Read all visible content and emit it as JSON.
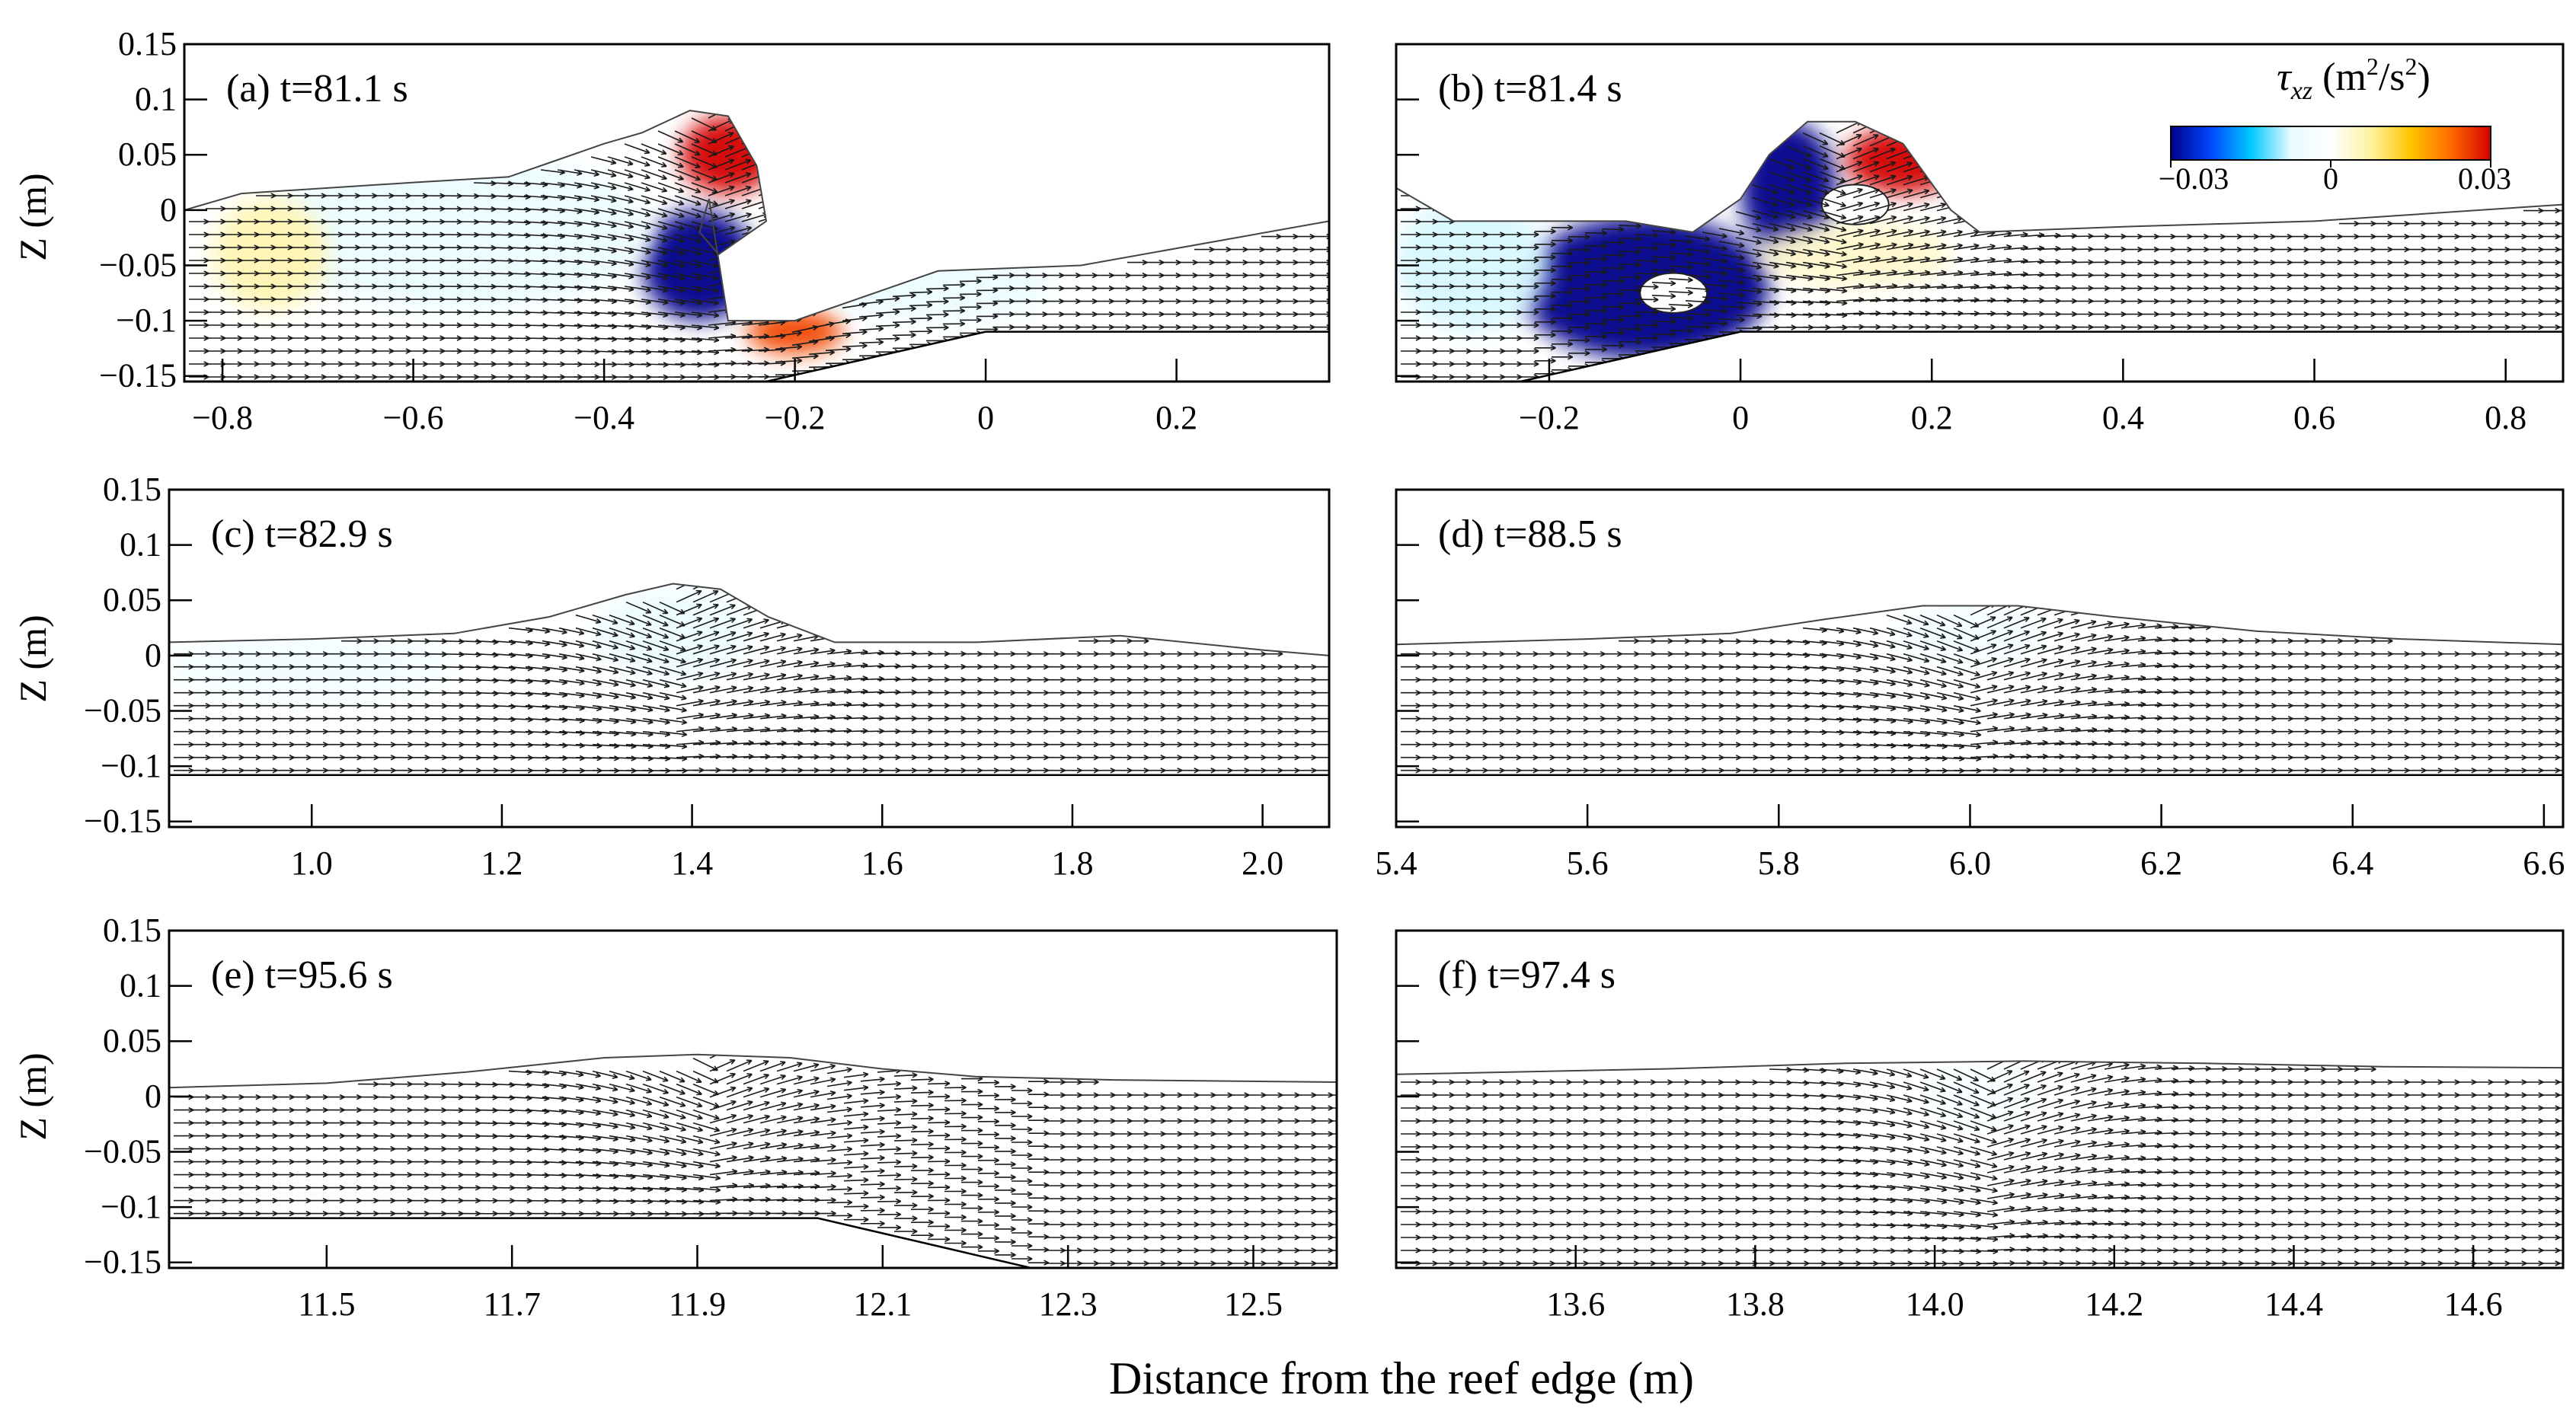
{
  "figure": {
    "xlabel": "Distance from the reef edge (m)",
    "ylabel": "Z (m)"
  },
  "colorbar": {
    "symbol": "τ",
    "subscript": "xz",
    "units_prefix": " (m",
    "units_exp": "2",
    "units_mid": "/s",
    "units_exp2": "2",
    "units_suffix": ")",
    "tick_labels": [
      "−0.03",
      "0",
      "0.03"
    ],
    "range": [
      -0.03,
      0.03
    ],
    "colors": [
      "#00008b",
      "#0047ff",
      "#00c8ff",
      "#e6fbff",
      "#ffffff",
      "#fff2a0",
      "#ffc400",
      "#ff6a00",
      "#d40000"
    ]
  },
  "colors": {
    "bed": "#000000",
    "arrow": "#1a1a1a"
  },
  "chart_data": [
    {
      "type": "quiver",
      "label": "(a)  t=81.1 s",
      "xlim": [
        -0.84,
        0.36
      ],
      "ylim": [
        -0.155,
        0.15
      ],
      "xticks": [
        -0.8,
        -0.6,
        -0.4,
        -0.2,
        0,
        0.2
      ],
      "xtick_labels": [
        "−0.8",
        "−0.6",
        "−0.4",
        "−0.2",
        "0",
        "0.2"
      ],
      "yticks": [
        0.15,
        0.1,
        0.05,
        0,
        -0.05,
        -0.1,
        -0.15
      ],
      "ytick_labels": [
        "0.15",
        "0.1",
        "0.05",
        "0",
        "−0.05",
        "−0.1",
        "−0.15"
      ],
      "surface": [
        [
          -0.84,
          0.0
        ],
        [
          -0.78,
          0.015
        ],
        [
          -0.6,
          0.025
        ],
        [
          -0.5,
          0.03
        ],
        [
          -0.45,
          0.045
        ],
        [
          -0.4,
          0.06
        ],
        [
          -0.36,
          0.07
        ],
        [
          -0.31,
          0.09
        ],
        [
          -0.27,
          0.085
        ],
        [
          -0.24,
          0.04
        ],
        [
          -0.23,
          -0.01
        ],
        [
          -0.28,
          -0.04
        ],
        [
          -0.3,
          -0.02
        ],
        [
          -0.29,
          0.01
        ],
        [
          -0.27,
          -0.1
        ],
        [
          -0.2,
          -0.1
        ],
        [
          -0.05,
          -0.055
        ],
        [
          0.1,
          -0.05
        ],
        [
          0.36,
          -0.01
        ]
      ],
      "bed": [
        [
          -0.84,
          -0.155
        ],
        [
          -0.23,
          -0.155
        ],
        [
          0.0,
          -0.11
        ],
        [
          0.36,
          -0.11
        ]
      ],
      "blobs": [
        {
          "x": -0.3,
          "y": -0.05,
          "rx": 0.06,
          "ry": 0.05,
          "v": -0.03
        },
        {
          "x": -0.27,
          "y": 0.05,
          "rx": 0.05,
          "ry": 0.035,
          "v": 0.03
        },
        {
          "x": -0.2,
          "y": -0.11,
          "rx": 0.05,
          "ry": 0.02,
          "v": 0.025
        },
        {
          "x": -0.55,
          "y": -0.02,
          "rx": 0.2,
          "ry": 0.07,
          "v": -0.006
        },
        {
          "x": -0.05,
          "y": -0.07,
          "rx": 0.12,
          "ry": 0.03,
          "v": -0.006
        },
        {
          "x": -0.75,
          "y": -0.04,
          "rx": 0.06,
          "ry": 0.05,
          "v": 0.006
        }
      ],
      "holes": [],
      "wave_x": -0.3
    },
    {
      "type": "quiver",
      "label": "(b)  t=81.4 s",
      "xlim": [
        -0.36,
        0.86
      ],
      "ylim": [
        -0.155,
        0.15
      ],
      "xticks": [
        -0.2,
        0,
        0.2,
        0.4,
        0.6,
        0.8
      ],
      "xtick_labels": [
        "−0.2",
        "0",
        "0.2",
        "0.4",
        "0.6",
        "0.8"
      ],
      "yticks": [
        0.15,
        0.1,
        0.05,
        0,
        -0.05,
        -0.1,
        -0.15
      ],
      "ytick_labels": [
        "",
        "",
        "",
        "",
        "",
        "",
        ""
      ],
      "surface": [
        [
          -0.36,
          0.02
        ],
        [
          -0.3,
          -0.01
        ],
        [
          -0.2,
          -0.01
        ],
        [
          -0.12,
          -0.01
        ],
        [
          -0.05,
          -0.02
        ],
        [
          0.0,
          0.01
        ],
        [
          0.03,
          0.05
        ],
        [
          0.07,
          0.08
        ],
        [
          0.12,
          0.08
        ],
        [
          0.17,
          0.06
        ],
        [
          0.22,
          0.0
        ],
        [
          0.25,
          -0.02
        ],
        [
          0.4,
          -0.015
        ],
        [
          0.6,
          -0.01
        ],
        [
          0.86,
          0.005
        ]
      ],
      "bed": [
        [
          -0.36,
          -0.155
        ],
        [
          -0.23,
          -0.155
        ],
        [
          0.0,
          -0.11
        ],
        [
          0.86,
          -0.11
        ]
      ],
      "blobs": [
        {
          "x": -0.1,
          "y": -0.07,
          "rx": 0.13,
          "ry": 0.065,
          "v": -0.03
        },
        {
          "x": 0.05,
          "y": 0.02,
          "rx": 0.05,
          "ry": 0.06,
          "v": -0.03
        },
        {
          "x": 0.17,
          "y": 0.045,
          "rx": 0.06,
          "ry": 0.03,
          "v": 0.03
        },
        {
          "x": -0.28,
          "y": -0.05,
          "rx": 0.08,
          "ry": 0.06,
          "v": -0.008
        },
        {
          "x": 0.12,
          "y": -0.04,
          "rx": 0.1,
          "ry": 0.03,
          "v": 0.004
        }
      ],
      "holes": [
        {
          "x": -0.07,
          "y": -0.075,
          "rx": 0.035,
          "ry": 0.018
        },
        {
          "x": 0.12,
          "y": 0.005,
          "rx": 0.035,
          "ry": 0.018
        }
      ],
      "wave_x": 0.1
    },
    {
      "type": "quiver",
      "label": "(c)  t=82.9 s",
      "xlim": [
        0.85,
        2.07
      ],
      "ylim": [
        -0.155,
        0.15
      ],
      "xticks": [
        1.0,
        1.2,
        1.4,
        1.6,
        1.8,
        2.0
      ],
      "xtick_labels": [
        "1.0",
        "1.2",
        "1.4",
        "1.6",
        "1.8",
        "2.0"
      ],
      "yticks": [
        0.15,
        0.1,
        0.05,
        0,
        -0.05,
        -0.1,
        -0.15
      ],
      "ytick_labels": [
        "0.15",
        "0.1",
        "0.05",
        "0",
        "−0.05",
        "−0.1",
        "−0.15"
      ],
      "surface": [
        [
          0.85,
          0.012
        ],
        [
          1.0,
          0.015
        ],
        [
          1.15,
          0.02
        ],
        [
          1.25,
          0.035
        ],
        [
          1.33,
          0.055
        ],
        [
          1.38,
          0.065
        ],
        [
          1.43,
          0.06
        ],
        [
          1.48,
          0.035
        ],
        [
          1.55,
          0.012
        ],
        [
          1.7,
          0.012
        ],
        [
          1.85,
          0.018
        ],
        [
          2.0,
          0.005
        ],
        [
          2.07,
          0.0
        ]
      ],
      "bed": [
        [
          0.85,
          -0.108
        ],
        [
          2.07,
          -0.108
        ]
      ],
      "blobs": [
        {
          "x": 1.38,
          "y": 0.02,
          "rx": 0.08,
          "ry": 0.04,
          "v": -0.006
        },
        {
          "x": 1.0,
          "y": -0.01,
          "rx": 0.15,
          "ry": 0.03,
          "v": -0.004
        }
      ],
      "holes": [],
      "wave_x": 1.38
    },
    {
      "type": "quiver",
      "label": "(d)  t=88.5 s",
      "xlim": [
        5.4,
        6.62
      ],
      "ylim": [
        -0.155,
        0.15
      ],
      "xticks": [
        5.4,
        5.6,
        5.8,
        6.0,
        6.2,
        6.4,
        6.6
      ],
      "xtick_labels": [
        "5.4",
        "5.6",
        "5.8",
        "6.0",
        "6.2",
        "6.4",
        "6.6"
      ],
      "yticks": [
        0.15,
        0.1,
        0.05,
        0,
        -0.05,
        -0.1,
        -0.15
      ],
      "ytick_labels": [
        "",
        "",
        "",
        "",
        "",
        "",
        ""
      ],
      "surface": [
        [
          5.4,
          0.01
        ],
        [
          5.6,
          0.015
        ],
        [
          5.75,
          0.02
        ],
        [
          5.85,
          0.033
        ],
        [
          5.95,
          0.045
        ],
        [
          6.05,
          0.045
        ],
        [
          6.15,
          0.035
        ],
        [
          6.3,
          0.022
        ],
        [
          6.45,
          0.015
        ],
        [
          6.62,
          0.01
        ]
      ],
      "bed": [
        [
          5.4,
          -0.108
        ],
        [
          6.62,
          -0.108
        ]
      ],
      "blobs": [
        {
          "x": 6.0,
          "y": 0.02,
          "rx": 0.08,
          "ry": 0.025,
          "v": -0.004
        }
      ],
      "holes": [],
      "wave_x": 6.0
    },
    {
      "type": "quiver",
      "label": "(e)  t=95.6 s",
      "xlim": [
        11.33,
        12.59
      ],
      "ylim": [
        -0.155,
        0.15
      ],
      "xticks": [
        11.5,
        11.7,
        11.9,
        12.1,
        12.3,
        12.5
      ],
      "xtick_labels": [
        "11.5",
        "11.7",
        "11.9",
        "12.1",
        "12.3",
        "12.5"
      ],
      "yticks": [
        0.15,
        0.1,
        0.05,
        0,
        -0.05,
        -0.1,
        -0.15
      ],
      "ytick_labels": [
        "0.15",
        "0.1",
        "0.05",
        "0",
        "−0.05",
        "−0.1",
        "−0.15"
      ],
      "surface": [
        [
          11.33,
          0.008
        ],
        [
          11.5,
          0.012
        ],
        [
          11.65,
          0.022
        ],
        [
          11.8,
          0.035
        ],
        [
          11.9,
          0.038
        ],
        [
          12.0,
          0.035
        ],
        [
          12.1,
          0.025
        ],
        [
          12.2,
          0.018
        ],
        [
          12.35,
          0.015
        ],
        [
          12.59,
          0.013
        ]
      ],
      "bed": [
        [
          11.33,
          -0.11
        ],
        [
          12.03,
          -0.11
        ],
        [
          12.26,
          -0.155
        ],
        [
          12.59,
          -0.155
        ]
      ],
      "blobs": [],
      "holes": [],
      "wave_x": 11.9
    },
    {
      "type": "quiver",
      "label": "(f)  t=97.4 s",
      "xlim": [
        13.4,
        14.7
      ],
      "ylim": [
        -0.155,
        0.15
      ],
      "xticks": [
        13.6,
        13.8,
        14.0,
        14.2,
        14.4,
        14.6
      ],
      "xtick_labels": [
        "13.6",
        "13.8",
        "14.0",
        "14.2",
        "14.4",
        "14.6"
      ],
      "yticks": [
        0.15,
        0.1,
        0.05,
        0,
        -0.05,
        -0.1,
        -0.15
      ],
      "ytick_labels": [
        "",
        "",
        "",
        "",
        "",
        "",
        ""
      ],
      "surface": [
        [
          13.4,
          0.02
        ],
        [
          13.7,
          0.025
        ],
        [
          13.9,
          0.03
        ],
        [
          14.1,
          0.032
        ],
        [
          14.3,
          0.03
        ],
        [
          14.5,
          0.027
        ],
        [
          14.7,
          0.026
        ]
      ],
      "bed": [
        [
          13.4,
          -0.155
        ],
        [
          14.7,
          -0.155
        ]
      ],
      "blobs": [
        {
          "x": 14.05,
          "y": 0.0,
          "rx": 0.06,
          "ry": 0.03,
          "v": -0.002
        }
      ],
      "holes": [],
      "wave_x": 14.05
    }
  ]
}
